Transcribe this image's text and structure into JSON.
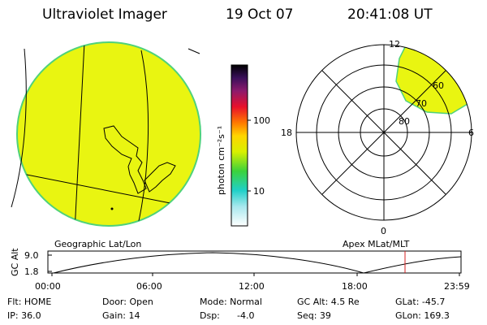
{
  "header": {
    "instrument": "Ultraviolet Imager",
    "date": "19 Oct 07",
    "time": "20:41:08 UT"
  },
  "colorbar": {
    "unit_label": "photon cm⁻²s⁻¹",
    "ticks": [
      "100",
      "10"
    ]
  },
  "polar_plot": {
    "mlt_labels": [
      "12",
      "18",
      "6",
      "0"
    ],
    "lat_labels": [
      "60",
      "70",
      "80"
    ]
  },
  "panel_labels": {
    "left": "Geographic Lat/Lon",
    "right": "Apex MLat/MLT"
  },
  "altitude_plot": {
    "ylabel": "GC Alt",
    "yticks": [
      "9.0",
      "1.8"
    ],
    "xticks": [
      "00:00",
      "06:00",
      "12:00",
      "18:00",
      "23:59"
    ]
  },
  "info": {
    "flt": "Flt: HOME",
    "ip": "IP: 36.0",
    "door": "Door: Open",
    "gain": "Gain: 14",
    "mode": "Mode: Normal",
    "dsp_label": "Dsp:",
    "dsp_value": "-4.0",
    "gc_alt": "GC Alt: 4.5 Re",
    "seq": "Seq: 39",
    "glat": "GLat: -45.7",
    "glon": "GLon: 169.3"
  },
  "colors": {
    "fill": "#e9f511",
    "edge": "#4fd27a",
    "marker": "#d62020"
  }
}
